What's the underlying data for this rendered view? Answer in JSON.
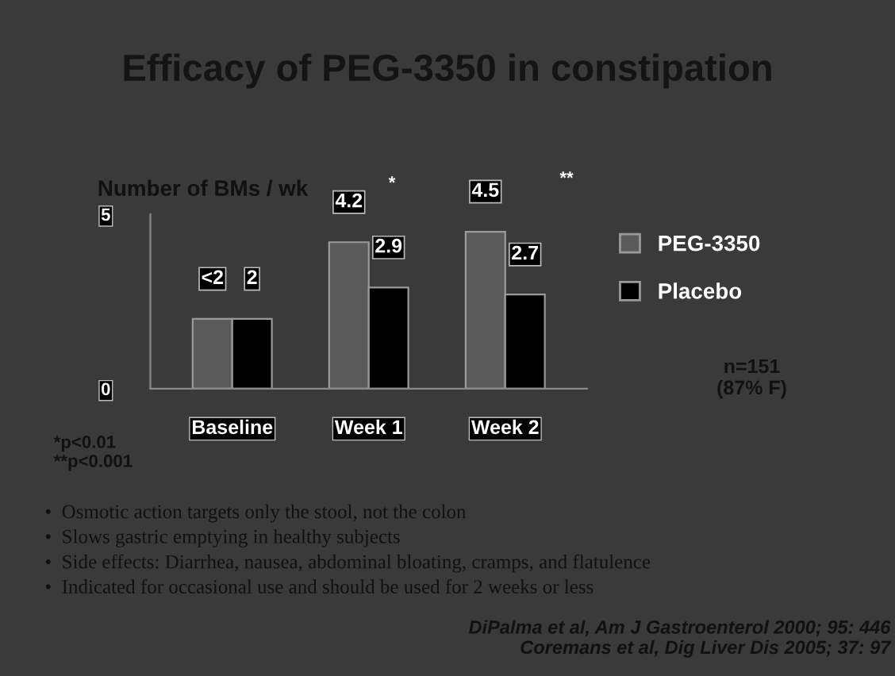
{
  "chart_data": {
    "type": "bar",
    "title": "Efficacy of PEG-3350 in constipation",
    "ylabel": "Number of BMs / wk",
    "categories": [
      "Baseline",
      "Week 1",
      "Week 2"
    ],
    "series": [
      {
        "name": "PEG-3350",
        "color": "#5a5a5a",
        "values": [
          2,
          4.2,
          4.5
        ],
        "value_labels": [
          "<2",
          "4.2",
          "4.5"
        ]
      },
      {
        "name": "Placebo",
        "color": "#000000",
        "values": [
          2,
          2.9,
          2.7
        ],
        "value_labels": [
          "2",
          "2.9",
          "2.7"
        ]
      }
    ],
    "ylim": [
      0,
      5
    ],
    "yticks": [
      0,
      5
    ],
    "grid": false,
    "legend": "right",
    "annotations": [
      "*",
      "**",
      "n=151\n(87% F)",
      "*p<0.01\n**p<0.001",
      "•  Osmotic action targets only the stool, not the colon\n•  Slows gastric emptying in healthy subjects\n•  Side effects: Diarrhea, nausea, abdominal bloating, cramps, and flatulence\n•  Indicated for occasional use and should be used for 2 weeks or less",
      "DiPalma et al, Am J Gastroenterol 2000; 95: 446\nCoremans et al, Dig Liver Dis 2005; 37: 97"
    ]
  }
}
